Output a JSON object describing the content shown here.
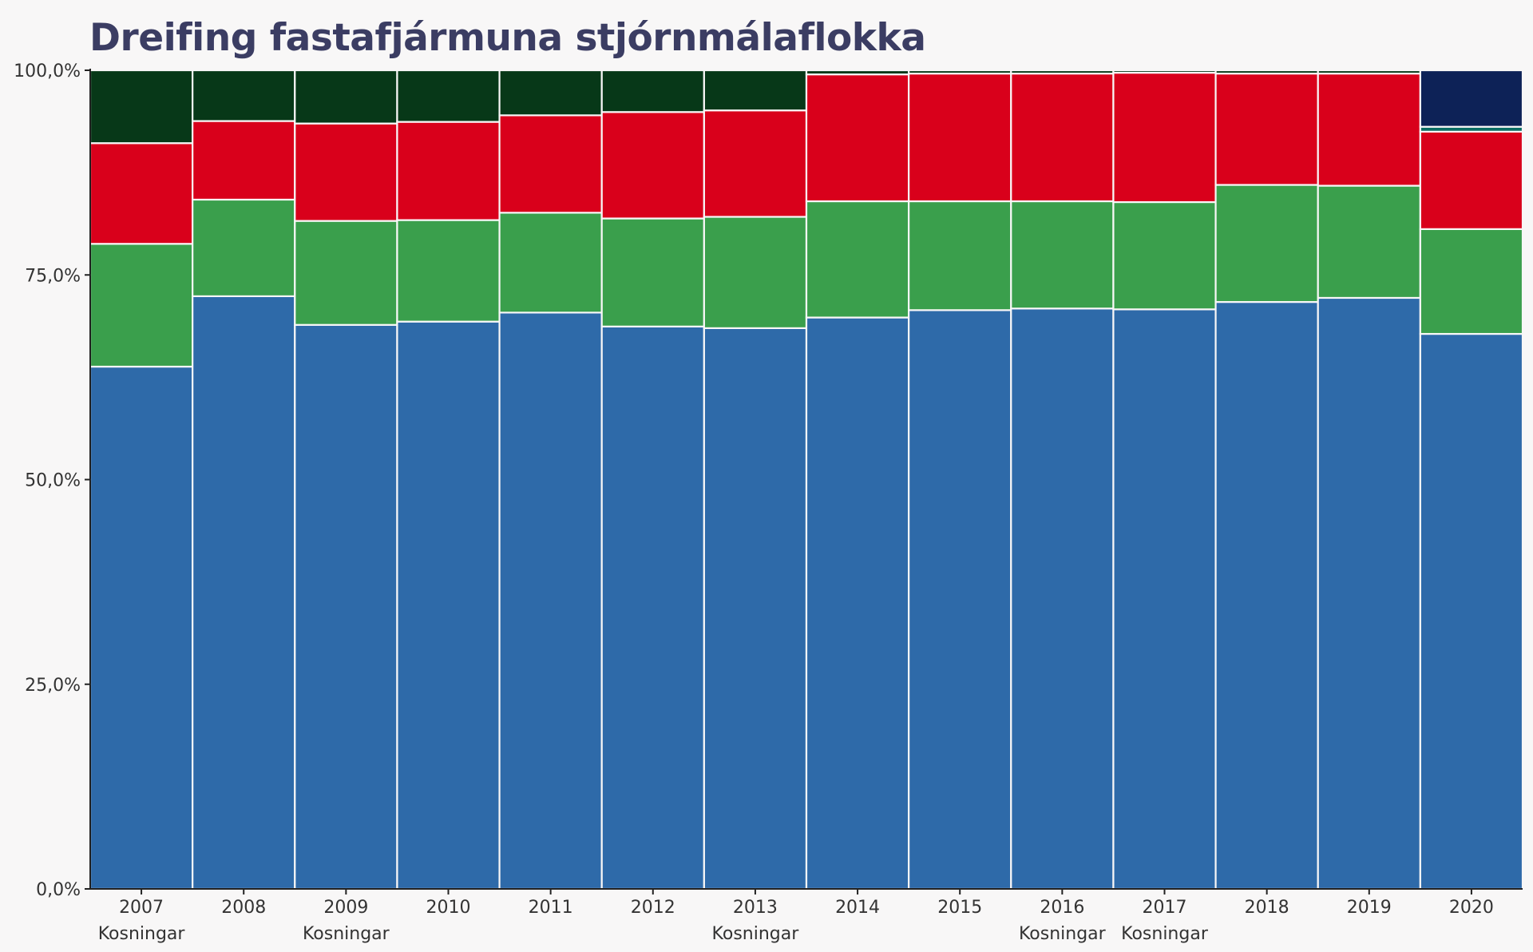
{
  "chart_data": {
    "type": "bar",
    "stacked": true,
    "title": "Dreifing fastafjármuna stjórnmálaflokka",
    "xlabel": "",
    "ylabel": "",
    "ylim": [
      0,
      100
    ],
    "y_ticks": [
      "0,0%",
      "25,0%",
      "50,0%",
      "75,0%",
      "100,0%"
    ],
    "y_tick_values": [
      0,
      25,
      50,
      75,
      100
    ],
    "grid": false,
    "categories": [
      "2007",
      "2008",
      "2009",
      "2010",
      "2011",
      "2012",
      "2013",
      "2014",
      "2015",
      "2016",
      "2017",
      "2018",
      "2019",
      "2020"
    ],
    "category_notes": [
      "Kosningar",
      "",
      "Kosningar",
      "",
      "",
      "",
      "Kosningar",
      "",
      "",
      "Kosningar",
      "Kosningar",
      "",
      "",
      ""
    ],
    "series": [
      {
        "color": "#2e6aa9",
        "values": [
          63.8,
          72.4,
          68.9,
          69.3,
          70.4,
          68.7,
          68.5,
          69.8,
          70.7,
          70.9,
          70.8,
          71.7,
          72.2,
          67.8
        ]
      },
      {
        "color": "#3a9f4c",
        "values": [
          15.0,
          11.8,
          12.7,
          12.4,
          12.2,
          13.2,
          13.6,
          14.2,
          13.3,
          13.1,
          13.1,
          14.3,
          13.7,
          12.8
        ]
      },
      {
        "color": "#d9001b",
        "values": [
          12.3,
          9.6,
          11.9,
          12.0,
          11.9,
          13.0,
          13.0,
          15.5,
          15.6,
          15.6,
          15.8,
          13.6,
          13.7,
          11.9
        ]
      },
      {
        "color": "#0b6e63",
        "values": [
          0,
          0,
          0,
          0,
          0,
          0,
          0,
          0,
          0,
          0,
          0,
          0,
          0,
          0.6
        ]
      },
      {
        "color": "#073818",
        "values": [
          8.9,
          6.2,
          6.5,
          6.3,
          5.5,
          5.1,
          4.9,
          0.5,
          0.4,
          0.4,
          0.3,
          0.4,
          0.4,
          0
        ]
      },
      {
        "color": "#0d2257",
        "values": [
          0,
          0,
          0,
          0,
          0,
          0,
          0,
          0,
          0,
          0,
          0,
          0,
          0,
          6.9
        ]
      }
    ]
  }
}
